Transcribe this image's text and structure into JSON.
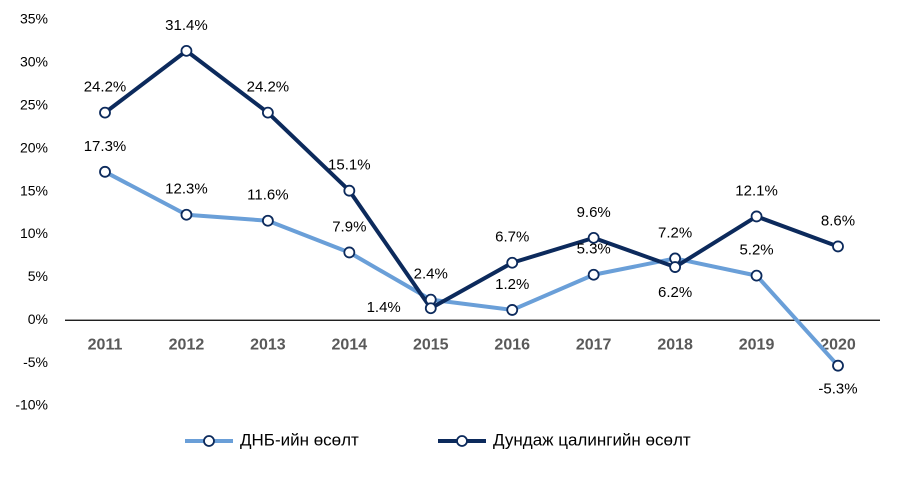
{
  "chart_data": {
    "type": "line",
    "categories": [
      "2011",
      "2012",
      "2013",
      "2014",
      "2015",
      "2016",
      "2017",
      "2018",
      "2019",
      "2020"
    ],
    "series": [
      {
        "name": "ДНБ-ийн өсөлт",
        "color": "#6a9fd8",
        "values": [
          17.3,
          12.3,
          11.6,
          7.9,
          2.4,
          1.2,
          5.3,
          7.2,
          5.2,
          -5.3
        ],
        "value_labels": [
          "17.3%",
          "12.3%",
          "11.6%",
          "7.9%",
          "2.4%",
          "1.2%",
          "5.3%",
          "7.2%",
          "5.2%",
          "-5.3%"
        ]
      },
      {
        "name": "Дундаж цалингийн өсөлт",
        "color": "#0c2a5c",
        "values": [
          24.2,
          31.4,
          24.2,
          15.1,
          1.4,
          6.7,
          9.6,
          6.2,
          12.1,
          8.6
        ],
        "value_labels": [
          "24.2%",
          "31.4%",
          "24.2%",
          "15.1%",
          "1.4%",
          "6.7%",
          "9.6%",
          "6.2%",
          "12.1%",
          "8.6%"
        ]
      }
    ],
    "ylim": [
      -10,
      35
    ],
    "yticks": [
      {
        "value": -10,
        "label": "-10%"
      },
      {
        "value": -5,
        "label": "-5%"
      },
      {
        "value": 0,
        "label": "0%"
      },
      {
        "value": 5,
        "label": "5%"
      },
      {
        "value": 10,
        "label": "10%"
      },
      {
        "value": 15,
        "label": "15%"
      },
      {
        "value": 20,
        "label": "20%"
      },
      {
        "value": 25,
        "label": "25%"
      },
      {
        "value": 30,
        "label": "30%"
      },
      {
        "value": 35,
        "label": "35%"
      }
    ],
    "grid": false,
    "legend": "bottom"
  }
}
